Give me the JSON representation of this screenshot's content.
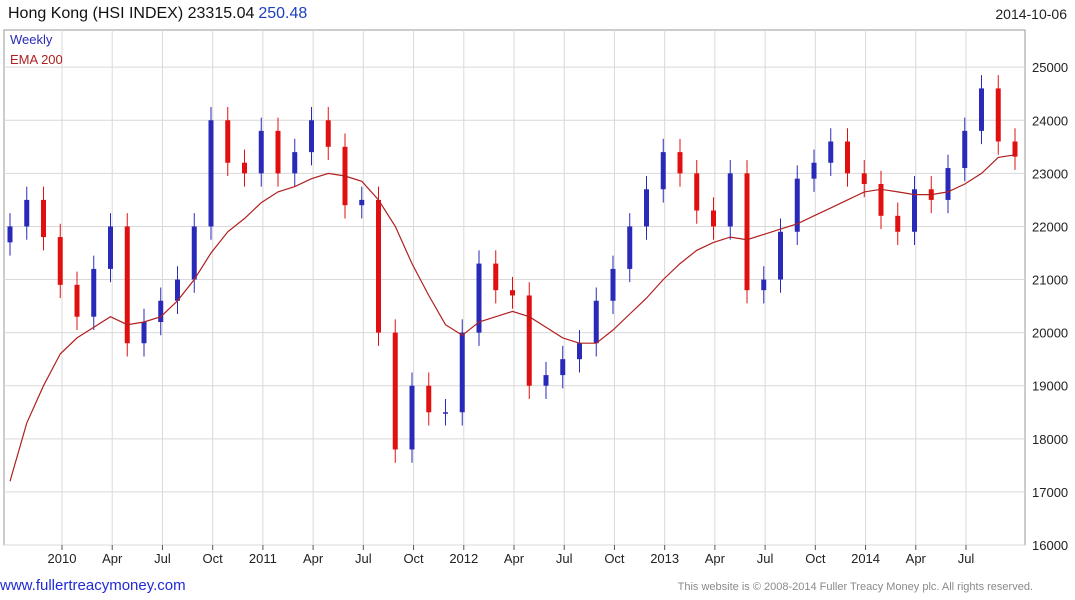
{
  "header": {
    "title": "Hong Kong (HSI INDEX) 23315.04",
    "change": "250.48",
    "date": "2014-10-06"
  },
  "footer": {
    "site": "www.fullertreacymoney.com",
    "copyright": "This website is © 2008-2014 Fuller Treacy Money plc. All rights reserved."
  },
  "colors": {
    "up": "#2a2ab8",
    "down": "#e01010",
    "ema": "#b02020",
    "grid": "#d9d9d9",
    "legend_weekly": "#2a2ab8",
    "legend_ema": "#b02020"
  },
  "chart_data": {
    "type": "line",
    "title": "Hong Kong (HSI INDEX) 23315.04",
    "legend": [
      "Weekly",
      "EMA 200"
    ],
    "legend_position": "top-left",
    "grid": true,
    "x_tick_labels": [
      "2010",
      "Apr",
      "Jul",
      "Oct",
      "2011",
      "Apr",
      "Jul",
      "Oct",
      "2012",
      "Apr",
      "Jul",
      "Oct",
      "2013",
      "Apr",
      "Jul",
      "Oct",
      "2014",
      "Apr",
      "Jul"
    ],
    "xlim": [
      "2009-10-05",
      "2014-10-06"
    ],
    "ylim": [
      16000,
      25700
    ],
    "y_ticks": [
      16000,
      17000,
      18000,
      19000,
      20000,
      21000,
      22000,
      23000,
      24000,
      25000
    ],
    "series": [
      {
        "name": "Weekly",
        "x": [
          "2009-10",
          "2009-11",
          "2009-12",
          "2010-01",
          "2010-02",
          "2010-03",
          "2010-04",
          "2010-05",
          "2010-06",
          "2010-07",
          "2010-08",
          "2010-09",
          "2010-10",
          "2010-11",
          "2010-12",
          "2011-01",
          "2011-02",
          "2011-03",
          "2011-04",
          "2011-05",
          "2011-06",
          "2011-07",
          "2011-08",
          "2011-09",
          "2011-10",
          "2011-11",
          "2011-12",
          "2012-01",
          "2012-02",
          "2012-03",
          "2012-04",
          "2012-05",
          "2012-06",
          "2012-07",
          "2012-08",
          "2012-09",
          "2012-10",
          "2012-11",
          "2012-12",
          "2013-01",
          "2013-02",
          "2013-03",
          "2013-04",
          "2013-05",
          "2013-06",
          "2013-07",
          "2013-08",
          "2013-09",
          "2013-10",
          "2013-11",
          "2013-12",
          "2014-01",
          "2014-02",
          "2014-03",
          "2014-04",
          "2014-05",
          "2014-06",
          "2014-07",
          "2014-08",
          "2014-09",
          "2014-10"
        ],
        "values": [
          22000,
          22500,
          21800,
          20900,
          20300,
          21200,
          22000,
          19800,
          20200,
          20600,
          21000,
          22000,
          24000,
          23200,
          23000,
          23800,
          23000,
          23400,
          24000,
          23500,
          22400,
          22500,
          20000,
          17800,
          19000,
          18500,
          18500,
          20000,
          21300,
          20800,
          20700,
          19000,
          19200,
          19500,
          19800,
          20600,
          21200,
          22000,
          22700,
          23400,
          23000,
          22300,
          22000,
          23000,
          20800,
          21000,
          21900,
          22900,
          23200,
          23600,
          23000,
          22800,
          22200,
          21900,
          22700,
          22500,
          23100,
          23800,
          24600,
          23600,
          23315
        ]
      },
      {
        "name": "EMA 200",
        "x": [
          "2009-10",
          "2009-11",
          "2009-12",
          "2010-01",
          "2010-02",
          "2010-03",
          "2010-04",
          "2010-05",
          "2010-06",
          "2010-07",
          "2010-08",
          "2010-09",
          "2010-10",
          "2010-11",
          "2010-12",
          "2011-01",
          "2011-02",
          "2011-03",
          "2011-04",
          "2011-05",
          "2011-06",
          "2011-07",
          "2011-08",
          "2011-09",
          "2011-10",
          "2011-11",
          "2011-12",
          "2012-01",
          "2012-02",
          "2012-03",
          "2012-04",
          "2012-05",
          "2012-06",
          "2012-07",
          "2012-08",
          "2012-09",
          "2012-10",
          "2012-11",
          "2012-12",
          "2013-01",
          "2013-02",
          "2013-03",
          "2013-04",
          "2013-05",
          "2013-06",
          "2013-07",
          "2013-08",
          "2013-09",
          "2013-10",
          "2013-11",
          "2013-12",
          "2014-01",
          "2014-02",
          "2014-03",
          "2014-04",
          "2014-05",
          "2014-06",
          "2014-07",
          "2014-08",
          "2014-09",
          "2014-10"
        ],
        "values": [
          17200,
          18300,
          19000,
          19600,
          19900,
          20100,
          20300,
          20150,
          20200,
          20300,
          20600,
          21000,
          21500,
          21900,
          22150,
          22450,
          22650,
          22750,
          22900,
          23000,
          22950,
          22850,
          22500,
          22000,
          21300,
          20700,
          20150,
          19950,
          20200,
          20300,
          20400,
          20300,
          20100,
          19900,
          19800,
          19800,
          20050,
          20350,
          20650,
          21000,
          21300,
          21550,
          21700,
          21800,
          21750,
          21850,
          21950,
          22050,
          22200,
          22350,
          22500,
          22650,
          22700,
          22650,
          22600,
          22600,
          22650,
          22800,
          23000,
          23300,
          23350
        ]
      }
    ]
  }
}
